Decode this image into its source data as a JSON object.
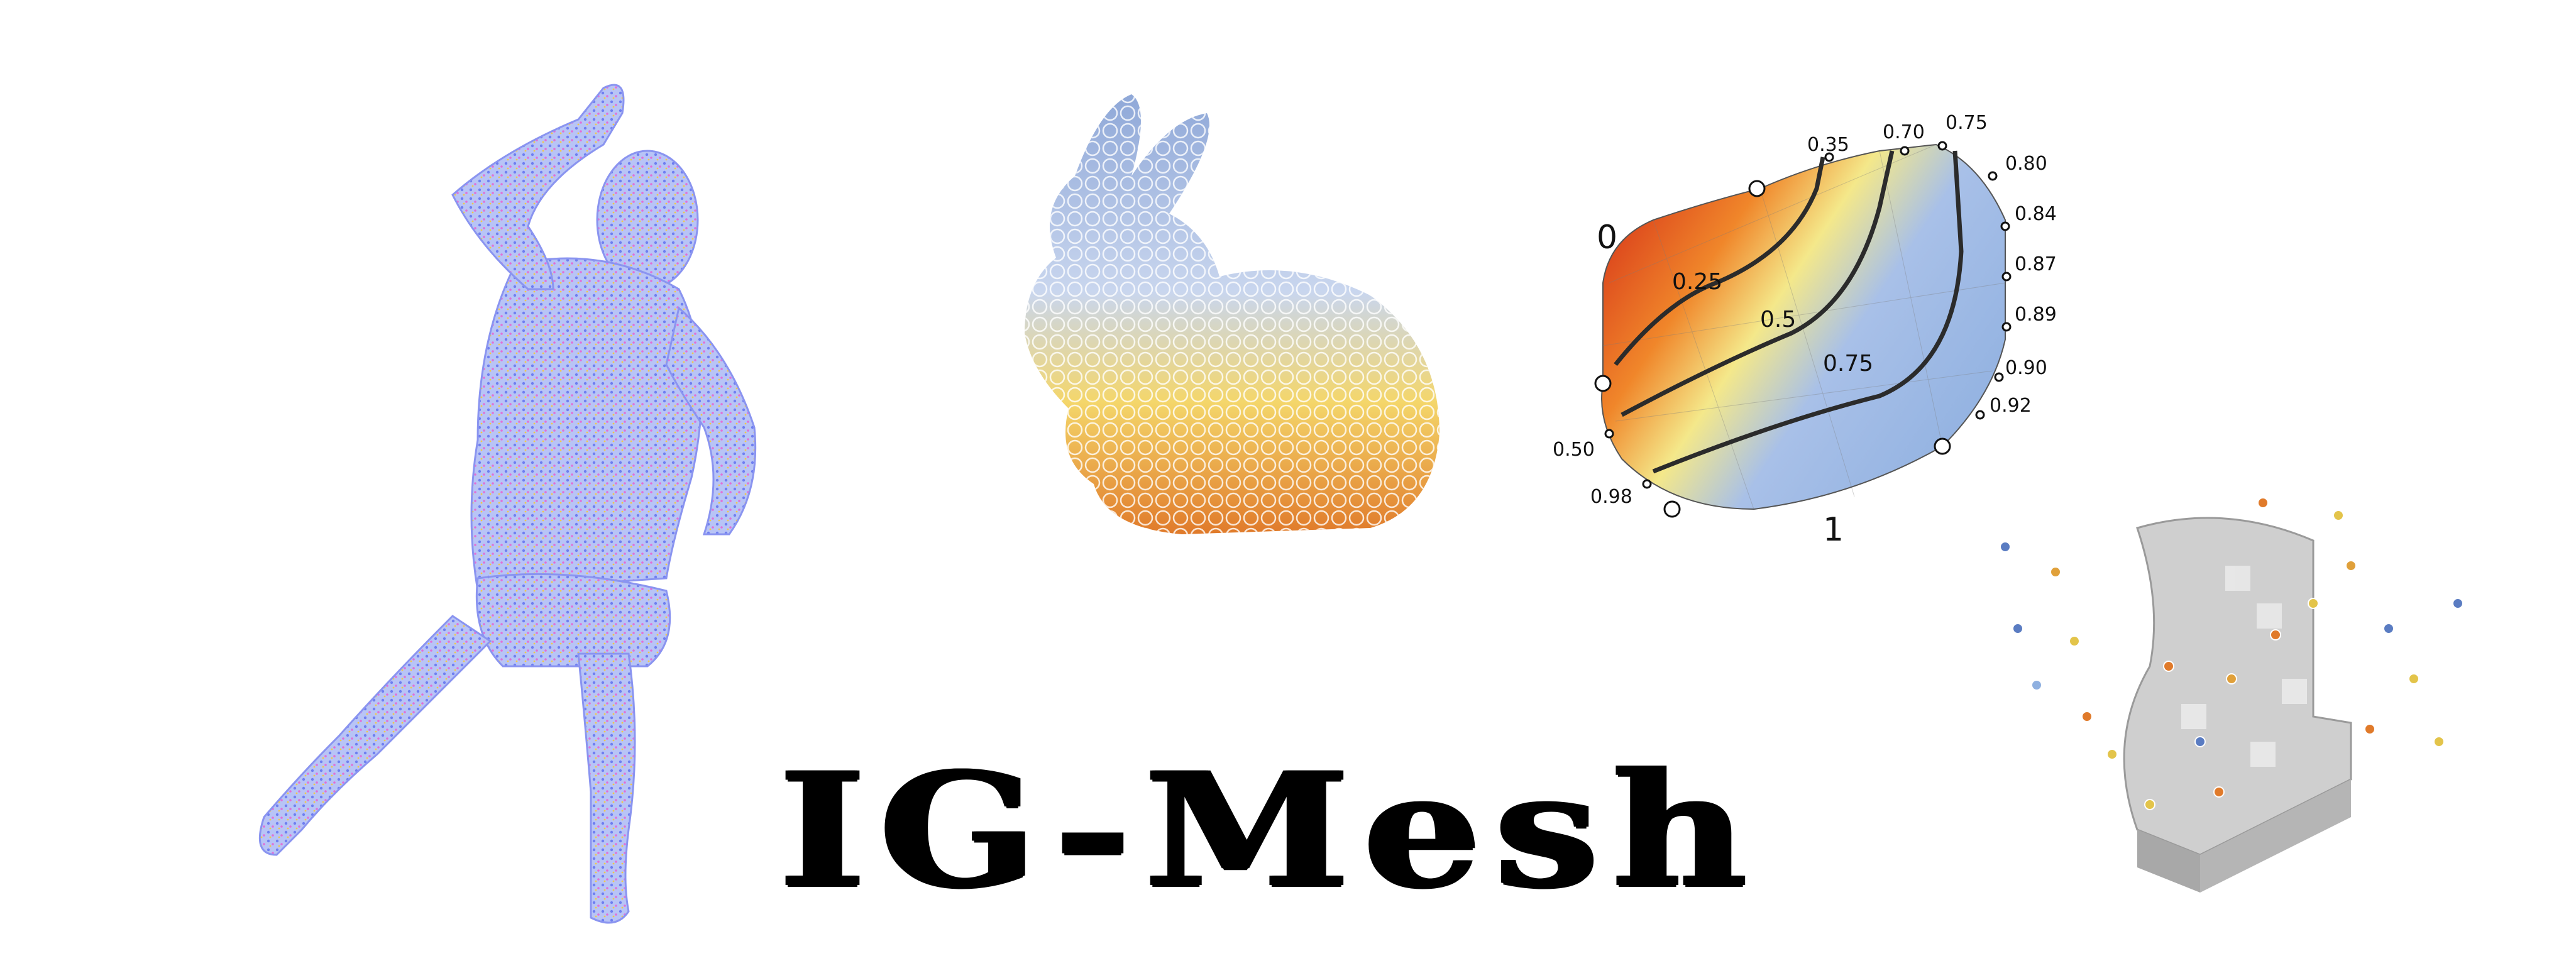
{
  "logo": {
    "text": "IG-Mesh"
  },
  "harmonic": {
    "corner_labels": [
      "0",
      "1"
    ],
    "contour_labels": [
      "0.25",
      "0.5",
      "0.75"
    ],
    "boundary_labels": [
      "0.35",
      "0.70",
      "0.75",
      "0.80",
      "0.84",
      "0.87",
      "0.89",
      "0.90",
      "0.92",
      "0.50",
      "0.98"
    ]
  },
  "colors": {
    "hot": "#d8391a",
    "warm": "#f2b02a",
    "mid": "#f4e88a",
    "cool": "#8fb0e0",
    "pointcloud_a": "#7c8cf0",
    "pointcloud_b": "#e06ad8"
  }
}
